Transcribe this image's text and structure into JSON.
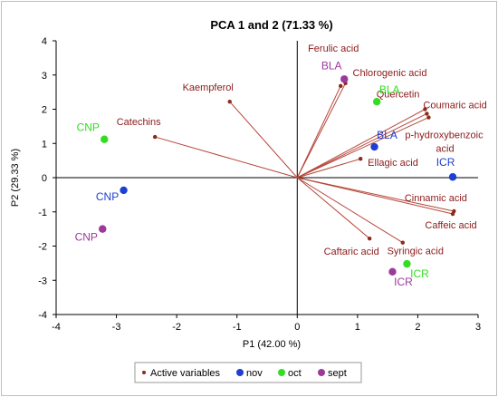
{
  "chart_data": {
    "type": "scatter",
    "title": "PCA 1 and 2 (71.33 %)",
    "xlabel": "P1 (42.00 %)",
    "ylabel": "P2 (29.33 %)",
    "xlim": [
      -4,
      3
    ],
    "ylim": [
      -4,
      4
    ],
    "xticks": [
      "-4",
      "-3",
      "-2",
      "-1",
      "0",
      "1",
      "2",
      "3"
    ],
    "yticks": [
      "-4",
      "-3",
      "-2",
      "-1",
      "0",
      "1",
      "2",
      "3",
      "4"
    ],
    "grid": false,
    "legend": {
      "position": "bottom",
      "entries": [
        "Active variables",
        "nov",
        "oct",
        "sept"
      ]
    },
    "colors": {
      "variables": "#b5473a",
      "nov": "#1f3fd1",
      "oct": "#33dd22",
      "sept": "#9b3a9b"
    },
    "variables": [
      {
        "label": "Ferulic acid",
        "x": 0.72,
        "y": 2.68
      },
      {
        "label": "Chlorogenic acid",
        "x": 0.8,
        "y": 2.76
      },
      {
        "label": "Kaempferol",
        "x": -1.12,
        "y": 2.22
      },
      {
        "label": "Quercetin",
        "x": 2.12,
        "y": 2.0
      },
      {
        "label": "Coumaric acid",
        "x": 2.15,
        "y": 1.87
      },
      {
        "label": "p-hydroxybenzoic acid",
        "x": 2.18,
        "y": 1.76
      },
      {
        "label": "Catechins",
        "x": -2.36,
        "y": 1.19
      },
      {
        "label": "Ellagic acid",
        "x": 1.05,
        "y": 0.55
      },
      {
        "label": "Cinnamic acid",
        "x": 2.6,
        "y": -0.98
      },
      {
        "label": "Caffeic acid",
        "x": 2.58,
        "y": -1.06
      },
      {
        "label": "Caftaric acid",
        "x": 1.2,
        "y": -1.78
      },
      {
        "label": "Syringic acid",
        "x": 1.75,
        "y": -1.9
      }
    ],
    "series": [
      {
        "name": "nov",
        "points": [
          {
            "label": "ICR",
            "x": 2.58,
            "y": 0.02
          },
          {
            "label": "BLA",
            "x": 1.28,
            "y": 0.9
          },
          {
            "label": "CNP",
            "x": -2.88,
            "y": -0.37
          }
        ]
      },
      {
        "name": "oct",
        "points": [
          {
            "label": "BLA",
            "x": 1.32,
            "y": 2.22
          },
          {
            "label": "CNP",
            "x": -3.2,
            "y": 1.12
          },
          {
            "label": "ICR",
            "x": 1.82,
            "y": -2.52
          }
        ]
      },
      {
        "name": "sept",
        "points": [
          {
            "label": "BLA",
            "x": 0.78,
            "y": 2.88
          },
          {
            "label": "CNP",
            "x": -3.23,
            "y": -1.5
          },
          {
            "label": "ICR",
            "x": 1.58,
            "y": -2.75
          }
        ]
      }
    ]
  }
}
